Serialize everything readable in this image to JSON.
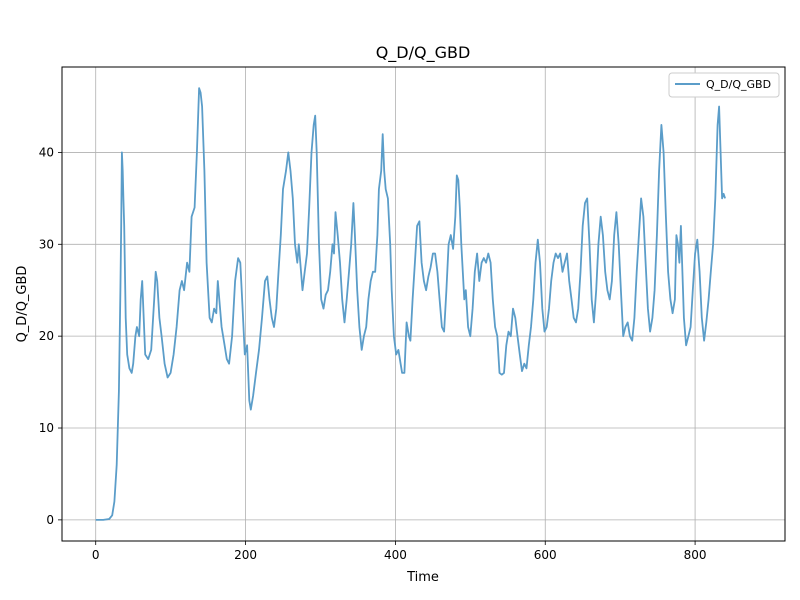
{
  "chart_data": {
    "type": "line",
    "title": "Q_D/Q_GBD",
    "xlabel": "Time",
    "ylabel": "Q_D/Q_GBD",
    "xlim": [
      -45,
      920
    ],
    "ylim": [
      -2.3,
      49.3
    ],
    "xticks": [
      0,
      200,
      400,
      600,
      800
    ],
    "yticks": [
      0,
      10,
      20,
      30,
      40
    ],
    "xtick_labels": [
      "0",
      "200",
      "400",
      "600",
      "800"
    ],
    "ytick_labels": [
      "0",
      "10",
      "20",
      "30",
      "40"
    ],
    "grid": true,
    "legend_position": "top-right",
    "line_color": "#5b9dc9",
    "series": [
      {
        "name": "Q_D/Q_GBD",
        "points": [
          [
            0,
            0
          ],
          [
            10,
            0
          ],
          [
            18,
            0.1
          ],
          [
            22,
            0.5
          ],
          [
            25,
            2
          ],
          [
            28,
            6
          ],
          [
            31,
            14
          ],
          [
            33,
            25
          ],
          [
            34,
            32
          ],
          [
            35,
            40
          ],
          [
            36,
            38
          ],
          [
            37,
            35
          ],
          [
            38,
            32
          ],
          [
            40,
            22
          ],
          [
            42,
            18
          ],
          [
            45,
            16.5
          ],
          [
            48,
            16
          ],
          [
            50,
            17
          ],
          [
            53,
            20
          ],
          [
            55,
            21
          ],
          [
            58,
            20
          ],
          [
            60,
            24
          ],
          [
            62,
            26
          ],
          [
            64,
            22
          ],
          [
            66,
            18
          ],
          [
            70,
            17.5
          ],
          [
            74,
            18.5
          ],
          [
            78,
            24
          ],
          [
            80,
            27
          ],
          [
            82,
            26
          ],
          [
            85,
            22
          ],
          [
            88,
            20
          ],
          [
            92,
            17
          ],
          [
            96,
            15.5
          ],
          [
            100,
            16
          ],
          [
            104,
            18
          ],
          [
            108,
            21
          ],
          [
            112,
            25
          ],
          [
            115,
            26
          ],
          [
            118,
            25
          ],
          [
            122,
            28
          ],
          [
            125,
            27
          ],
          [
            128,
            33
          ],
          [
            132,
            34
          ],
          [
            135,
            40
          ],
          [
            138,
            47
          ],
          [
            140,
            46.5
          ],
          [
            142,
            45
          ],
          [
            145,
            38
          ],
          [
            148,
            28
          ],
          [
            152,
            22
          ],
          [
            155,
            21.5
          ],
          [
            158,
            23
          ],
          [
            161,
            22.5
          ],
          [
            163,
            26
          ],
          [
            165,
            24
          ],
          [
            168,
            21
          ],
          [
            172,
            19
          ],
          [
            175,
            17.5
          ],
          [
            178,
            17
          ],
          [
            182,
            20
          ],
          [
            186,
            26
          ],
          [
            190,
            28.5
          ],
          [
            193,
            28
          ],
          [
            196,
            23
          ],
          [
            199,
            18
          ],
          [
            202,
            19
          ],
          [
            205,
            13
          ],
          [
            207,
            12
          ],
          [
            210,
            13.5
          ],
          [
            214,
            16
          ],
          [
            218,
            18.5
          ],
          [
            222,
            22
          ],
          [
            226,
            26
          ],
          [
            229,
            26.5
          ],
          [
            232,
            24
          ],
          [
            235,
            22
          ],
          [
            238,
            21
          ],
          [
            241,
            23
          ],
          [
            244,
            27
          ],
          [
            247,
            31
          ],
          [
            250,
            36
          ],
          [
            254,
            38
          ],
          [
            257,
            40
          ],
          [
            260,
            38
          ],
          [
            263,
            35
          ],
          [
            266,
            30
          ],
          [
            269,
            28
          ],
          [
            271,
            30
          ],
          [
            273,
            28
          ],
          [
            276,
            25
          ],
          [
            279,
            27
          ],
          [
            282,
            29
          ],
          [
            285,
            34
          ],
          [
            288,
            40
          ],
          [
            291,
            43
          ],
          [
            293,
            44
          ],
          [
            295,
            40
          ],
          [
            298,
            30
          ],
          [
            301,
            24
          ],
          [
            304,
            23
          ],
          [
            307,
            24.5
          ],
          [
            310,
            25
          ],
          [
            313,
            27
          ],
          [
            316,
            30
          ],
          [
            318,
            29
          ],
          [
            320,
            33.5
          ],
          [
            323,
            31
          ],
          [
            326,
            28
          ],
          [
            329,
            24
          ],
          [
            332,
            21.5
          ],
          [
            335,
            24
          ],
          [
            338,
            27
          ],
          [
            341,
            30
          ],
          [
            344,
            34.5
          ],
          [
            346,
            31
          ],
          [
            349,
            25
          ],
          [
            352,
            21
          ],
          [
            355,
            18.5
          ],
          [
            358,
            20
          ],
          [
            361,
            21
          ],
          [
            364,
            24
          ],
          [
            367,
            26
          ],
          [
            370,
            27
          ],
          [
            373,
            27
          ],
          [
            376,
            31
          ],
          [
            378,
            36
          ],
          [
            381,
            38
          ],
          [
            383,
            42
          ],
          [
            385,
            38
          ],
          [
            387,
            36
          ],
          [
            390,
            35
          ],
          [
            393,
            30
          ],
          [
            395,
            25
          ],
          [
            398,
            20
          ],
          [
            401,
            18
          ],
          [
            404,
            18.5
          ],
          [
            407,
            17
          ],
          [
            409,
            16
          ],
          [
            412,
            16
          ],
          [
            415,
            21.5
          ],
          [
            418,
            20
          ],
          [
            420,
            19.5
          ],
          [
            423,
            24
          ],
          [
            426,
            28
          ],
          [
            429,
            32
          ],
          [
            432,
            32.5
          ],
          [
            435,
            28
          ],
          [
            438,
            26
          ],
          [
            441,
            25
          ],
          [
            444,
            26.5
          ],
          [
            447,
            27.5
          ],
          [
            450,
            29
          ],
          [
            453,
            29
          ],
          [
            456,
            27
          ],
          [
            459,
            24
          ],
          [
            462,
            21
          ],
          [
            465,
            20.5
          ],
          [
            468,
            25
          ],
          [
            471,
            30
          ],
          [
            474,
            31
          ],
          [
            477,
            29.5
          ],
          [
            480,
            33
          ],
          [
            482,
            37.5
          ],
          [
            484,
            37
          ],
          [
            486,
            34
          ],
          [
            488,
            30
          ],
          [
            490,
            27
          ],
          [
            492,
            24
          ],
          [
            494,
            25
          ],
          [
            497,
            21
          ],
          [
            500,
            20
          ],
          [
            503,
            23
          ],
          [
            506,
            27
          ],
          [
            509,
            29
          ],
          [
            512,
            26
          ],
          [
            515,
            28
          ],
          [
            518,
            28.5
          ],
          [
            521,
            28
          ],
          [
            524,
            29
          ],
          [
            527,
            28
          ],
          [
            530,
            24
          ],
          [
            533,
            21
          ],
          [
            536,
            20
          ],
          [
            539,
            16
          ],
          [
            542,
            15.8
          ],
          [
            545,
            16
          ],
          [
            548,
            19
          ],
          [
            551,
            20.5
          ],
          [
            554,
            20
          ],
          [
            557,
            23
          ],
          [
            560,
            22
          ],
          [
            563,
            20
          ],
          [
            566,
            18
          ],
          [
            569,
            16.2
          ],
          [
            572,
            17
          ],
          [
            575,
            16.5
          ],
          [
            578,
            19
          ],
          [
            581,
            21
          ],
          [
            584,
            24
          ],
          [
            587,
            28
          ],
          [
            590,
            30.5
          ],
          [
            593,
            28
          ],
          [
            596,
            23
          ],
          [
            599,
            20.5
          ],
          [
            602,
            21
          ],
          [
            605,
            23
          ],
          [
            608,
            26
          ],
          [
            611,
            28
          ],
          [
            614,
            29
          ],
          [
            617,
            28.5
          ],
          [
            620,
            29
          ],
          [
            623,
            27
          ],
          [
            626,
            28
          ],
          [
            629,
            29
          ],
          [
            632,
            26
          ],
          [
            635,
            24
          ],
          [
            638,
            22
          ],
          [
            641,
            21.5
          ],
          [
            644,
            23
          ],
          [
            647,
            27
          ],
          [
            650,
            32
          ],
          [
            653,
            34.5
          ],
          [
            656,
            35
          ],
          [
            659,
            30
          ],
          [
            662,
            24
          ],
          [
            665,
            21.5
          ],
          [
            668,
            25
          ],
          [
            671,
            30
          ],
          [
            674,
            33
          ],
          [
            677,
            31
          ],
          [
            680,
            27
          ],
          [
            683,
            25
          ],
          [
            686,
            24
          ],
          [
            689,
            26
          ],
          [
            692,
            31
          ],
          [
            695,
            33.5
          ],
          [
            698,
            30
          ],
          [
            701,
            25
          ],
          [
            704,
            20
          ],
          [
            707,
            21
          ],
          [
            710,
            21.5
          ],
          [
            713,
            20
          ],
          [
            716,
            19.5
          ],
          [
            719,
            22
          ],
          [
            722,
            27
          ],
          [
            725,
            31
          ],
          [
            728,
            35
          ],
          [
            731,
            33
          ],
          [
            734,
            28
          ],
          [
            737,
            23
          ],
          [
            740,
            20.5
          ],
          [
            743,
            22
          ],
          [
            746,
            25
          ],
          [
            749,
            31
          ],
          [
            752,
            38
          ],
          [
            755,
            43
          ],
          [
            758,
            40
          ],
          [
            761,
            33
          ],
          [
            764,
            27
          ],
          [
            767,
            24
          ],
          [
            770,
            22.5
          ],
          [
            773,
            24
          ],
          [
            775,
            31
          ],
          [
            777,
            30
          ],
          [
            779,
            28
          ],
          [
            781,
            32
          ],
          [
            783,
            27
          ],
          [
            785,
            22
          ],
          [
            788,
            19
          ],
          [
            791,
            20
          ],
          [
            794,
            21
          ],
          [
            797,
            25
          ],
          [
            800,
            29
          ],
          [
            803,
            30.5
          ],
          [
            806,
            27
          ],
          [
            809,
            22
          ],
          [
            812,
            19.5
          ],
          [
            815,
            21.5
          ],
          [
            818,
            24
          ],
          [
            821,
            27
          ],
          [
            824,
            30
          ],
          [
            827,
            35
          ],
          [
            830,
            43
          ],
          [
            832,
            45
          ],
          [
            834,
            40
          ],
          [
            836,
            35
          ],
          [
            838,
            35.5
          ],
          [
            840,
            35
          ]
        ]
      }
    ]
  }
}
